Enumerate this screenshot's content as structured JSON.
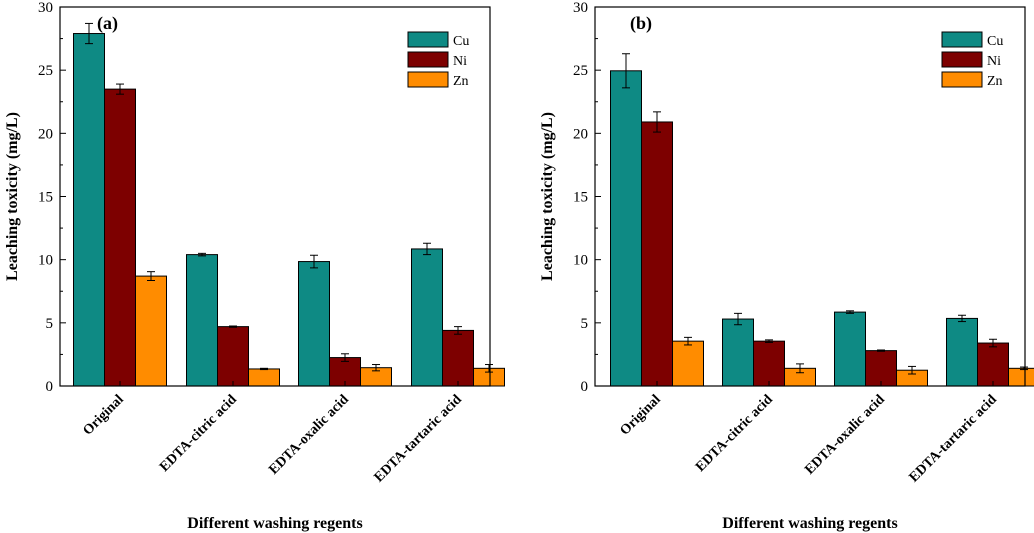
{
  "chart_data": [
    {
      "type": "bar",
      "panel_label": "(a)",
      "categories": [
        "Original",
        "EDTA-citric acid",
        "EDTA-oxalic acid",
        "EDTA-tartaric acid"
      ],
      "series": [
        {
          "name": "Cu",
          "color": "#0e8a84",
          "values": [
            27.9,
            10.4,
            9.85,
            10.85
          ],
          "errors": [
            0.8,
            0.1,
            0.5,
            0.45
          ]
        },
        {
          "name": "Ni",
          "color": "#7d0000",
          "values": [
            23.5,
            4.7,
            2.25,
            4.4
          ],
          "errors": [
            0.4,
            0.05,
            0.3,
            0.3
          ]
        },
        {
          "name": "Zn",
          "color": "#ff8c00",
          "values": [
            8.7,
            1.35,
            1.45,
            1.4
          ],
          "errors": [
            0.35,
            0.05,
            0.25,
            0.3
          ]
        }
      ],
      "xlabel": "Different washing regents",
      "ylabel": "Leaching toxicity (mg/L)",
      "ylim": [
        0,
        30
      ],
      "yticks": [
        "0",
        "5",
        "10",
        "15",
        "20",
        "25",
        "30"
      ],
      "legend": "top-right"
    },
    {
      "type": "bar",
      "panel_label": "(b)",
      "categories": [
        "Original",
        "EDTA-citric acid",
        "EDTA-oxalic acid",
        "EDTA-tartaric acid"
      ],
      "series": [
        {
          "name": "Cu",
          "color": "#0e8a84",
          "values": [
            24.95,
            5.3,
            5.85,
            5.35
          ],
          "errors": [
            1.35,
            0.45,
            0.1,
            0.25
          ]
        },
        {
          "name": "Ni",
          "color": "#7d0000",
          "values": [
            20.9,
            3.55,
            2.8,
            3.4
          ],
          "errors": [
            0.8,
            0.1,
            0.05,
            0.3
          ]
        },
        {
          "name": "Zn",
          "color": "#ff8c00",
          "values": [
            3.55,
            1.4,
            1.25,
            1.4
          ],
          "errors": [
            0.3,
            0.35,
            0.3,
            0.1
          ]
        }
      ],
      "xlabel": "Different washing regents",
      "ylabel": "Leaching toxicity (mg/L)",
      "ylim": [
        0,
        30
      ],
      "yticks": [
        "0",
        "5",
        "10",
        "15",
        "20",
        "25",
        "30"
      ],
      "legend": "top-right"
    }
  ]
}
